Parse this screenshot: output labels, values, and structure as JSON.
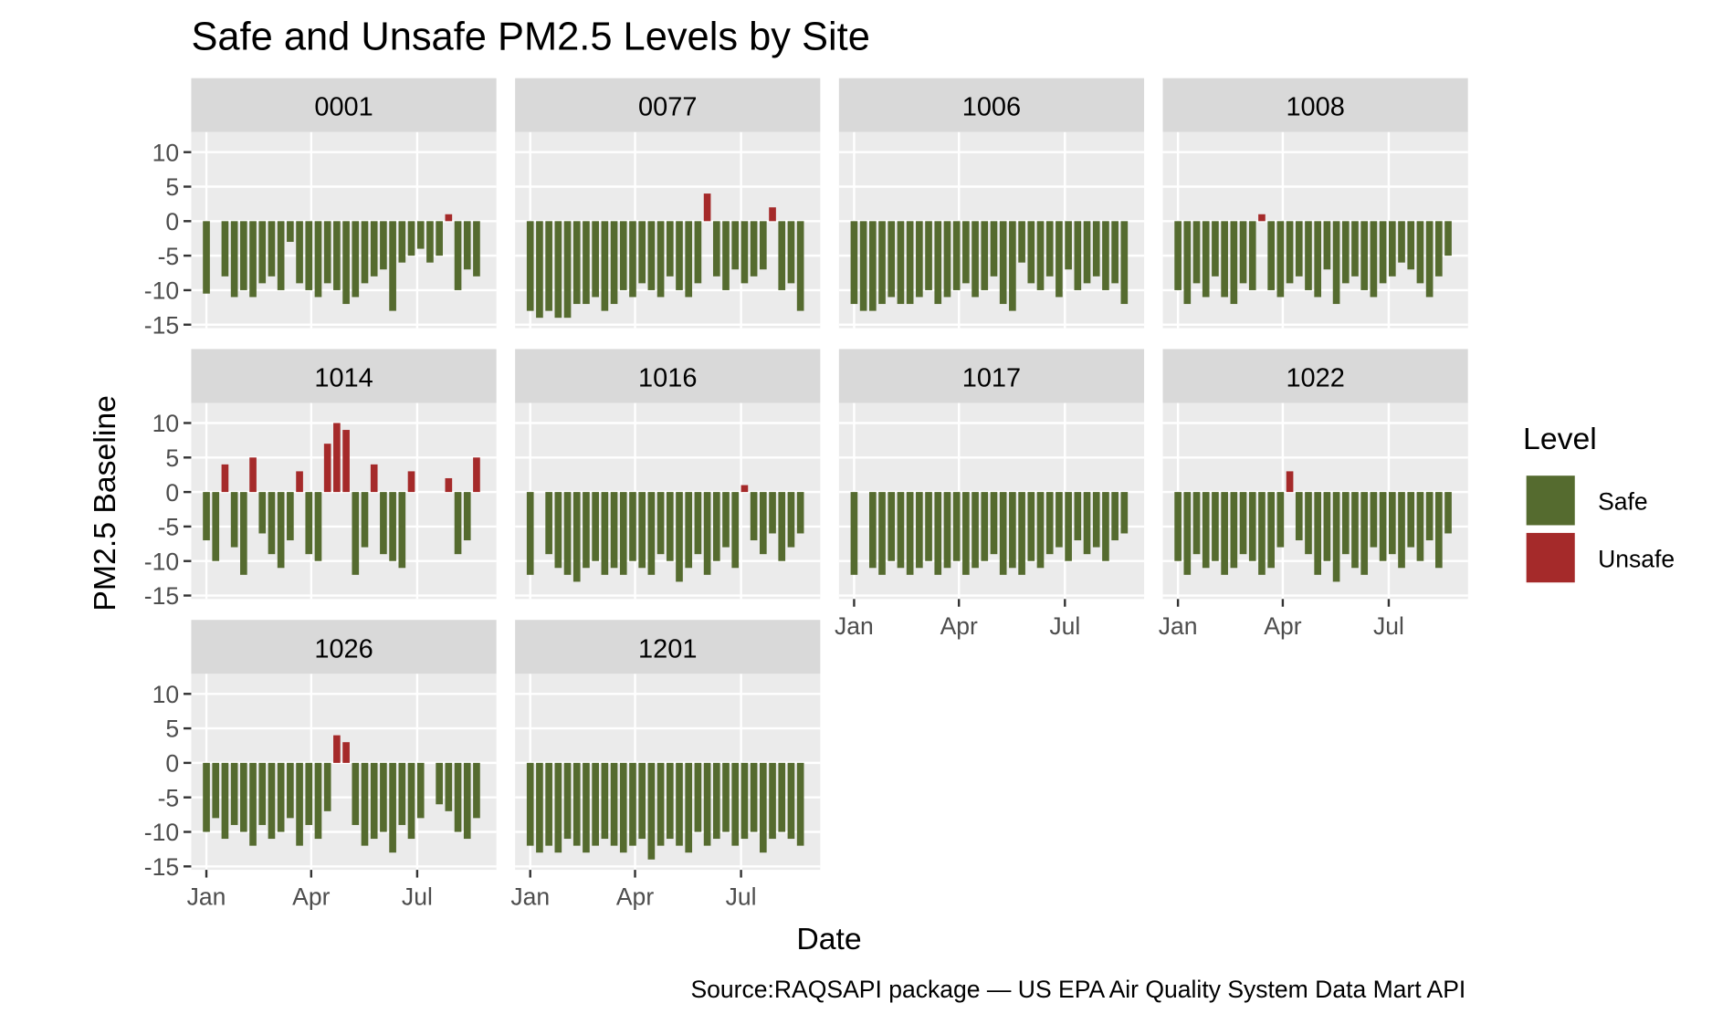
{
  "chart_data": {
    "type": "bar",
    "title": "Safe and Unsafe PM2.5 Levels by Site",
    "x_label": "Date",
    "y_label": "PM2.5 Baseline",
    "caption": "Source:RAQSAPI package — US EPA Air Quality System Data Mart API",
    "legend_title": "Level",
    "legend_position": "right",
    "grid": true,
    "series": [
      {
        "name": "Safe",
        "color": "#556b2f"
      },
      {
        "name": "Unsafe",
        "color": "#a52a2a"
      }
    ],
    "ylim": [
      -15.5,
      12.9
    ],
    "yticks": [
      10,
      5,
      0,
      -5,
      -10,
      -15
    ],
    "xlim": [
      -13,
      249
    ],
    "xticks": [
      {
        "value": 0,
        "label": "Jan"
      },
      {
        "value": 90,
        "label": "Apr"
      },
      {
        "value": 181,
        "label": "Jul"
      }
    ],
    "x": [
      0,
      8,
      16,
      24,
      32,
      40,
      48,
      56,
      64,
      72,
      80,
      88,
      96,
      104,
      112,
      120,
      128,
      136,
      144,
      152,
      160,
      168,
      176,
      184,
      192,
      200,
      208,
      216,
      224,
      232
    ],
    "facets": [
      {
        "title": "0001",
        "values": [
          -10.5,
          null,
          -8,
          -11,
          -10,
          -11,
          -9,
          -8,
          -10,
          -3,
          -9,
          -10,
          -11,
          -9,
          -10,
          -12,
          -11,
          -9,
          -8,
          -7,
          -13,
          -6,
          -5,
          -4,
          -6,
          -5,
          1,
          -10,
          -7,
          -8
        ]
      },
      {
        "title": "0077",
        "values": [
          -13,
          -14,
          -13,
          -14,
          -14,
          -12,
          -12,
          -11,
          -13,
          -12,
          -10,
          -11,
          -9,
          -10,
          -11,
          -8,
          -10,
          -11,
          -9,
          4,
          -8,
          -10,
          -7,
          -9,
          -8,
          -7,
          2,
          -10,
          -9,
          -13
        ]
      },
      {
        "title": "1006",
        "values": [
          -12,
          -13,
          -13,
          -12,
          -11,
          -12,
          -12,
          -11,
          -10,
          -12,
          -11,
          -10,
          -9,
          -11,
          -10,
          -8,
          -12,
          -13,
          -6,
          -9,
          -10,
          -8,
          -11,
          -7,
          -10,
          -9,
          -8,
          -10,
          -9,
          -12
        ]
      },
      {
        "title": "1008",
        "values": [
          -10,
          -12,
          -9,
          -11,
          -8,
          -11,
          -12,
          -9,
          -10,
          1,
          -10,
          -11,
          -9,
          -8,
          -10,
          -11,
          -7,
          -12,
          -9,
          -8,
          -10,
          -11,
          -9,
          -8,
          -6,
          -7,
          -9,
          -11,
          -8,
          -5
        ]
      },
      {
        "title": "1014",
        "values": [
          -7,
          -10,
          4,
          -8,
          -12,
          5,
          -6,
          -9,
          -11,
          -7,
          3,
          -9,
          -10,
          7,
          10,
          9,
          -12,
          -8,
          4,
          -9,
          -10,
          -11,
          3,
          null,
          null,
          null,
          2,
          -9,
          -7,
          5
        ]
      },
      {
        "title": "1016",
        "values": [
          -12,
          null,
          -9,
          -11,
          -12,
          -13,
          -11,
          -10,
          -12,
          -11,
          -12,
          -10,
          -11,
          -12,
          -9,
          -10,
          -13,
          -11,
          -9,
          -12,
          -10,
          -8,
          -11,
          1,
          -7,
          -9,
          -6,
          -10,
          -8,
          -6
        ]
      },
      {
        "title": "1017",
        "values": [
          -12,
          null,
          -11,
          -12,
          -10,
          -11,
          -12,
          -11,
          -10,
          -12,
          -11,
          -10,
          -12,
          -11,
          -10,
          -9,
          -12,
          -11,
          -12,
          -10,
          -11,
          -9,
          -8,
          -10,
          -7,
          -9,
          -8,
          -10,
          -7,
          -6
        ]
      },
      {
        "title": "1022",
        "values": [
          -10,
          -12,
          -9,
          -11,
          -10,
          -12,
          -11,
          -9,
          -10,
          -12,
          -11,
          -8,
          3,
          -7,
          -9,
          -12,
          -10,
          -13,
          -9,
          -11,
          -12,
          -8,
          -10,
          -9,
          -11,
          -8,
          -10,
          -7,
          -11,
          -6
        ]
      },
      {
        "title": "1026",
        "values": [
          -10,
          -8,
          -11,
          -9,
          -10,
          -12,
          -9,
          -11,
          -10,
          -8,
          -12,
          -9,
          -11,
          -7,
          4,
          3,
          -9,
          -12,
          -11,
          -10,
          -13,
          -9,
          -11,
          -8,
          null,
          -6,
          -7,
          -10,
          -11,
          -8
        ]
      },
      {
        "title": "1201",
        "values": [
          -12,
          -13,
          -12,
          -13,
          -11,
          -12,
          -13,
          -12,
          -11,
          -12,
          -13,
          -12,
          -11,
          -14,
          -12,
          -11,
          -12,
          -13,
          -10,
          -12,
          -11,
          -10,
          -12,
          -11,
          -10,
          -13,
          -11,
          -10,
          -11,
          -12
        ]
      }
    ]
  }
}
